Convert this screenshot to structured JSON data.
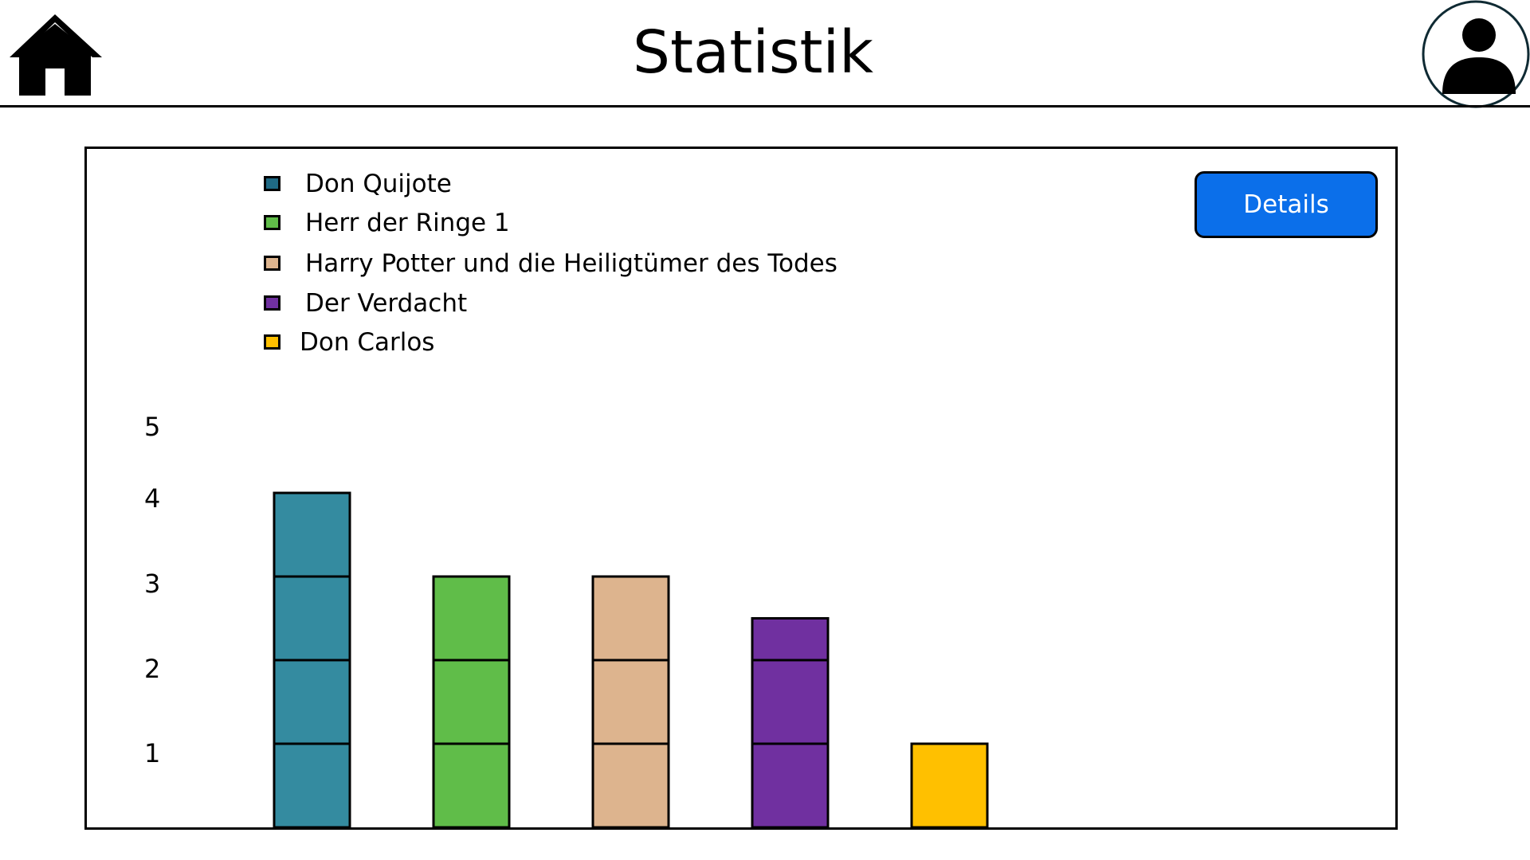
{
  "header": {
    "title": "Statistik",
    "home_icon": "home-icon",
    "profile_icon": "user-avatar-icon"
  },
  "details_button": {
    "label": "Details",
    "color": "#0b6fea"
  },
  "chart_data": {
    "type": "bar",
    "stacked_units": true,
    "categories": [
      "Don Quijote",
      "Herr der Ringe 1",
      "Harry Potter und die Heiligtümer des Todes",
      "Der Verdacht",
      "Don Carlos"
    ],
    "series": [
      {
        "name": "Don Quijote",
        "value": 4,
        "color": "#348ba0"
      },
      {
        "name": "Herr der Ringe 1",
        "value": 3,
        "color": "#60bd49"
      },
      {
        "name": "Harry Potter und die Heiligtümer des Todes",
        "value": 3,
        "color": "#ddb48e"
      },
      {
        "name": "Der Verdacht",
        "value": 2.5,
        "color": "#7030a0"
      },
      {
        "name": "Don Carlos",
        "value": 1,
        "color": "#ffc000"
      }
    ],
    "legend_swatch_colors": [
      "#1f6a85",
      "#60bd49",
      "#ddb48e",
      "#7030a0",
      "#ffc000"
    ],
    "y_ticks": [
      "1",
      "2",
      "3",
      "4",
      "5"
    ],
    "ylim": [
      0,
      5
    ],
    "title": "",
    "xlabel": "",
    "ylabel": "",
    "grid": false,
    "legend_position": "top-left"
  }
}
